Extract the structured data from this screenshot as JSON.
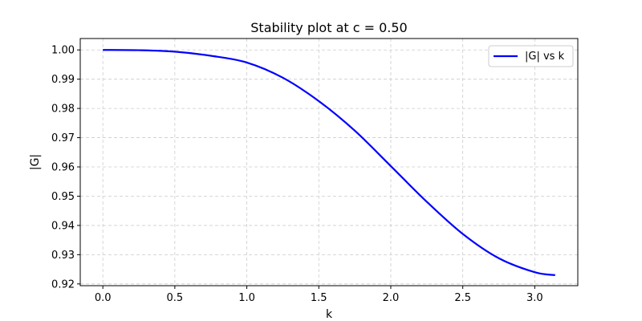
{
  "chart_data": {
    "type": "line",
    "title": "Stability plot at c = 0.50",
    "xlabel": "k",
    "ylabel": "|G|",
    "xlim": [
      -0.157,
      3.299
    ],
    "ylim": [
      0.9194,
      1.0039
    ],
    "xticks": [
      0.0,
      0.5,
      1.0,
      1.5,
      2.0,
      2.5,
      3.0
    ],
    "xtick_labels": [
      "0.0",
      "0.5",
      "1.0",
      "1.5",
      "2.0",
      "2.5",
      "3.0"
    ],
    "yticks": [
      0.92,
      0.93,
      0.94,
      0.95,
      0.96,
      0.97,
      0.98,
      0.99,
      1.0
    ],
    "ytick_labels": [
      "0.92",
      "0.93",
      "0.94",
      "0.95",
      "0.96",
      "0.97",
      "0.98",
      "0.99",
      "1.00"
    ],
    "grid": true,
    "legend_position": "top-right",
    "series": [
      {
        "name": "|G| vs k",
        "color": "#0000ff",
        "x": [
          0.0,
          0.25,
          0.5,
          0.75,
          1.0,
          1.25,
          1.5,
          1.75,
          2.0,
          2.25,
          2.5,
          2.75,
          3.0,
          3.1416
        ],
        "y": [
          1.0,
          0.9999,
          0.9994,
          0.998,
          0.9957,
          0.9905,
          0.9825,
          0.9724,
          0.9603,
          0.9481,
          0.9371,
          0.9288,
          0.924,
          0.923
        ]
      }
    ]
  }
}
